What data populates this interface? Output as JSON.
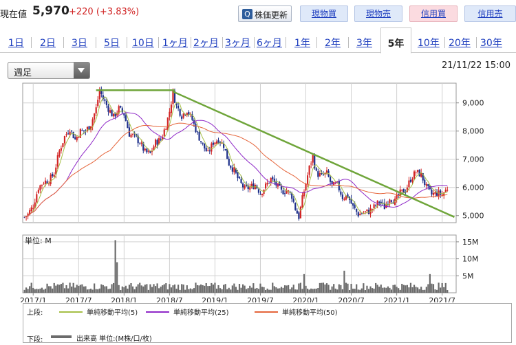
{
  "header": {
    "price_label": "現在値",
    "price_value": "5,970",
    "price_change": "+220 (+3.83%)",
    "refresh_label": "株価更新",
    "buttons": {
      "genbutsu_buy": "現物買",
      "genbutsu_sell": "現物売",
      "shinyo_buy": "信用買",
      "shinyo_sell": "信用売"
    }
  },
  "tabs": [
    "1日",
    "2日",
    "3日",
    "5日",
    "10日",
    "1ヶ月",
    "2ヶ月",
    "3ヶ月",
    "6ヶ月",
    "1年",
    "2年",
    "3年",
    "5年",
    "10年",
    "20年",
    "30年"
  ],
  "active_tab": "5年",
  "select": {
    "value": "週足"
  },
  "timestamp": "21/11/22 15:00",
  "colors": {
    "candle_up": "#d22525",
    "candle_down": "#1d2f8a",
    "ma5": "#a5bf45",
    "ma25": "#8e27c7",
    "ma50": "#e5643a",
    "volume": "#6b6b6b",
    "trendline": "#6fa53a"
  },
  "legend": {
    "upper_label": "上段:",
    "lower_label": "下段:",
    "ma5": "単純移動平均(5)",
    "ma25": "単純移動平均(25)",
    "ma50": "単純移動平均(50)",
    "volume": "出来高 単位:(M株/口/枚)"
  },
  "chart_data": {
    "type": "candlestick",
    "price_panel": {
      "y_ticks": [
        "9,000",
        "8,000",
        "7,000",
        "6,000",
        "5,000"
      ],
      "y_tick_values": [
        9000,
        8000,
        7000,
        6000,
        5000
      ],
      "ylim": [
        4750,
        9700
      ],
      "grid": true
    },
    "volume_panel": {
      "unit_label": "単位: M",
      "y_ticks": [
        "15M",
        "10M",
        "5M"
      ],
      "y_tick_values": [
        15,
        10,
        5
      ],
      "ylim": [
        0,
        17
      ]
    },
    "x_ticks": [
      "2017/1",
      "2017/7",
      "2018/1",
      "2018/7",
      "2019/1",
      "2019/7",
      "2020/1",
      "2020/7",
      "2021/1",
      "2021/7"
    ],
    "x_tick_weeks": [
      0,
      26,
      52,
      78,
      104,
      130,
      156,
      182,
      208,
      234
    ],
    "weekly_close_anchors": [
      [
        -5,
        4950
      ],
      [
        -3,
        5050
      ],
      [
        0,
        5350
      ],
      [
        3,
        6000
      ],
      [
        6,
        6200
      ],
      [
        9,
        6250
      ],
      [
        12,
        6500
      ],
      [
        15,
        7300
      ],
      [
        18,
        7800
      ],
      [
        21,
        8100
      ],
      [
        24,
        7700
      ],
      [
        27,
        8000
      ],
      [
        30,
        8000
      ],
      [
        33,
        8250
      ],
      [
        36,
        8800
      ],
      [
        38,
        9450
      ],
      [
        40,
        9150
      ],
      [
        43,
        8800
      ],
      [
        46,
        8500
      ],
      [
        49,
        8800
      ],
      [
        52,
        8600
      ],
      [
        55,
        7900
      ],
      [
        58,
        7800
      ],
      [
        61,
        7600
      ],
      [
        64,
        7250
      ],
      [
        67,
        7200
      ],
      [
        70,
        7600
      ],
      [
        73,
        7700
      ],
      [
        76,
        8200
      ],
      [
        78,
        8700
      ],
      [
        80,
        9350
      ],
      [
        82,
        8900
      ],
      [
        85,
        8550
      ],
      [
        88,
        8750
      ],
      [
        91,
        8400
      ],
      [
        94,
        7900
      ],
      [
        97,
        7500
      ],
      [
        100,
        7200
      ],
      [
        103,
        7600
      ],
      [
        106,
        7700
      ],
      [
        109,
        7500
      ],
      [
        112,
        6850
      ],
      [
        115,
        6600
      ],
      [
        118,
        6200
      ],
      [
        121,
        5950
      ],
      [
        124,
        6000
      ],
      [
        127,
        6100
      ],
      [
        130,
        5800
      ],
      [
        133,
        6050
      ],
      [
        136,
        6300
      ],
      [
        139,
        6100
      ],
      [
        142,
        5850
      ],
      [
        145,
        5900
      ],
      [
        148,
        5700
      ],
      [
        150,
        5250
      ],
      [
        152,
        4950
      ],
      [
        154,
        5600
      ],
      [
        156,
        6150
      ],
      [
        158,
        6700
      ],
      [
        160,
        7100
      ],
      [
        162,
        6500
      ],
      [
        165,
        6400
      ],
      [
        168,
        6500
      ],
      [
        171,
        6050
      ],
      [
        174,
        6100
      ],
      [
        177,
        5650
      ],
      [
        180,
        5700
      ],
      [
        183,
        5300
      ],
      [
        186,
        5050
      ],
      [
        189,
        5100
      ],
      [
        192,
        5150
      ],
      [
        195,
        5300
      ],
      [
        198,
        5500
      ],
      [
        201,
        5300
      ],
      [
        204,
        5650
      ],
      [
        207,
        5500
      ],
      [
        210,
        5800
      ],
      [
        213,
        5900
      ],
      [
        216,
        6300
      ],
      [
        219,
        6550
      ],
      [
        222,
        6450
      ],
      [
        225,
        6000
      ],
      [
        228,
        5750
      ],
      [
        231,
        5800
      ],
      [
        234,
        5750
      ],
      [
        237,
        5970
      ]
    ],
    "volume_spikes": [
      [
        47,
        15.5
      ],
      [
        48,
        9
      ],
      [
        227,
        5.5
      ],
      [
        178,
        6.5
      ],
      [
        155,
        5.5
      ]
    ],
    "resistance_line": {
      "x_weeks": [
        36,
        81
      ],
      "y": 9450
    },
    "downtrend_line": {
      "x_weeks": [
        80,
        241
      ],
      "y": [
        9400,
        4950
      ]
    },
    "series": [
      {
        "name": "単純移動平均(5)"
      },
      {
        "name": "単純移動平均(25)"
      },
      {
        "name": "単純移動平均(50)"
      },
      {
        "name": "出来高 単位:(M株/口/枚)"
      }
    ]
  }
}
